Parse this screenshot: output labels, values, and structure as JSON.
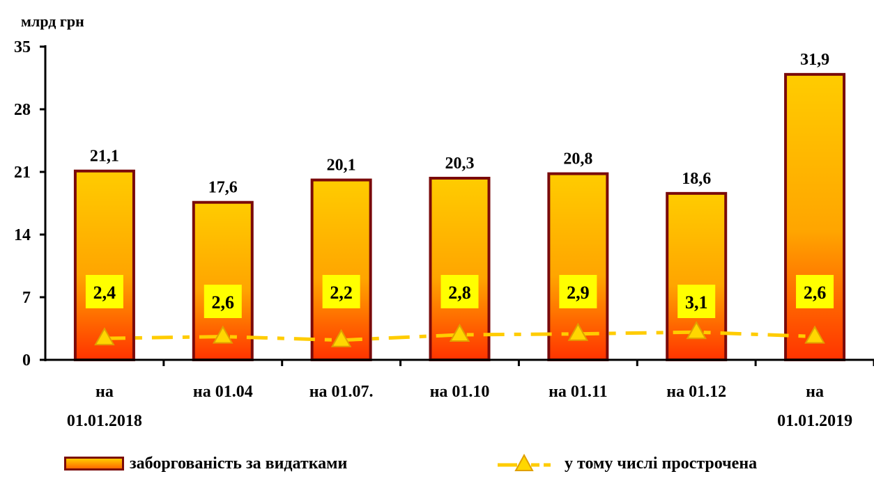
{
  "chart_data": {
    "type": "bar",
    "unit_label": "млрд грн",
    "categories": [
      [
        "на",
        "01.01.2018"
      ],
      [
        "на 01.04"
      ],
      [
        "на 01.07."
      ],
      [
        "на 01.10"
      ],
      [
        "на 01.11"
      ],
      [
        "на 01.12"
      ],
      [
        "на",
        "01.01.2019"
      ]
    ],
    "series": [
      {
        "name": "заборгованість за видатками",
        "kind": "bar",
        "values": [
          21.1,
          17.6,
          20.1,
          20.3,
          20.8,
          18.6,
          31.9
        ],
        "labels": [
          "21,1",
          "17,6",
          "20,1",
          "20,3",
          "20,8",
          "18,6",
          "31,9"
        ],
        "color_top": "#ffcc00",
        "color_bottom": "#ff3300",
        "border_color": "#7a0a0a"
      },
      {
        "name": "у тому числі прострочена",
        "kind": "line",
        "values": [
          2.4,
          2.6,
          2.2,
          2.8,
          2.9,
          3.1,
          2.6
        ],
        "labels": [
          "2,4",
          "2,6",
          "2,2",
          "2,8",
          "2,9",
          "3,1",
          "2,6"
        ],
        "line_color": "#ffcc00",
        "marker": "triangle",
        "label_bg": "#ffff00"
      }
    ],
    "yticks": [
      "0",
      "7",
      "14",
      "21",
      "28",
      "35"
    ],
    "ylim": [
      0,
      35
    ],
    "grid": false,
    "legend_position": "bottom"
  }
}
